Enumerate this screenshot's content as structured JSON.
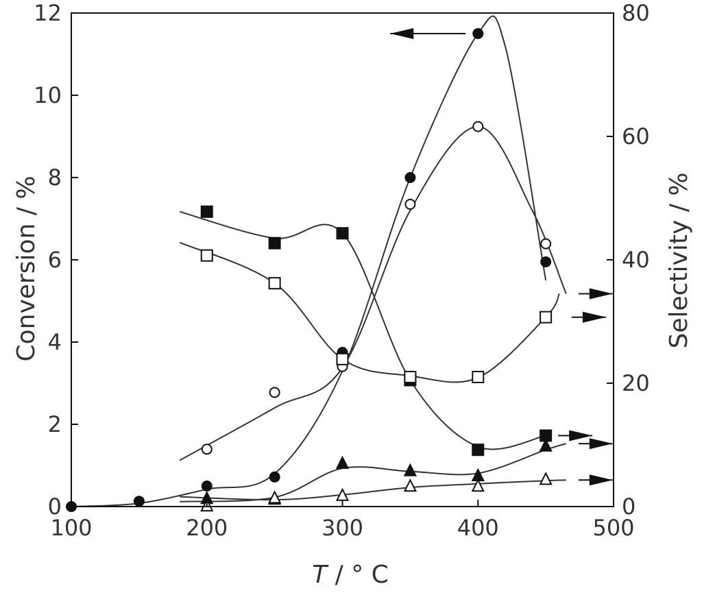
{
  "chart_data": {
    "type": "scatter",
    "xlabel": {
      "italic": "T",
      "rest": " / °  C"
    },
    "ylabel_left": "Conversion / %",
    "ylabel_right": "Selectivity / %",
    "xlim": [
      100,
      500
    ],
    "ylim_left": [
      0,
      12
    ],
    "ylim_right": [
      0,
      80
    ],
    "xticks": [
      "100",
      "200",
      "300",
      "400",
      "500"
    ],
    "yticks_left": [
      "0",
      "2",
      "4",
      "6",
      "8",
      "10",
      "12"
    ],
    "yticks_right": [
      "0",
      "20",
      "40",
      "60",
      "80"
    ],
    "grid": false,
    "legend": "none",
    "series": [
      {
        "marker": "filled-circle",
        "axis": "left",
        "x": [
          100,
          150,
          200,
          250,
          300,
          350,
          400,
          450
        ],
        "y": [
          0,
          0.13,
          0.5,
          0.72,
          3.75,
          8.0,
          11.5,
          5.95
        ],
        "curve": [
          [
            100,
            0
          ],
          [
            150,
            0.08
          ],
          [
            200,
            0.42
          ],
          [
            250,
            0.8
          ],
          [
            300,
            3.3
          ],
          [
            350,
            8.0
          ],
          [
            400,
            11.5
          ],
          [
            420,
            11.2
          ],
          [
            450,
            5.5
          ]
        ],
        "axis_arrow": "left"
      },
      {
        "marker": "open-circle",
        "axis": "right",
        "x": [
          200,
          250,
          300,
          350,
          400,
          450
        ],
        "y": [
          9.3,
          18.5,
          22.7,
          49,
          61.6,
          42.6
        ],
        "curve": [
          [
            180,
            7.5
          ],
          [
            250,
            16
          ],
          [
            300,
            22.5
          ],
          [
            350,
            48
          ],
          [
            400,
            61.6
          ],
          [
            440,
            48
          ],
          [
            465,
            34.5
          ]
        ],
        "axis_arrow": "right"
      },
      {
        "marker": "filled-square",
        "axis": "right",
        "x": [
          200,
          250,
          300,
          350,
          400,
          450
        ],
        "y": [
          47.8,
          42.7,
          44.3,
          20.5,
          9.2,
          11.5
        ],
        "curve": [
          [
            180,
            47.8
          ],
          [
            250,
            43.5
          ],
          [
            300,
            44.3
          ],
          [
            350,
            20.5
          ],
          [
            400,
            9.7
          ],
          [
            450,
            11.5
          ]
        ],
        "axis_arrow": "right"
      },
      {
        "marker": "open-square",
        "axis": "right",
        "x": [
          200,
          250,
          300,
          350,
          400,
          450
        ],
        "y": [
          40.7,
          36.2,
          23.9,
          21,
          21,
          30.7
        ],
        "curve": [
          [
            180,
            42.8
          ],
          [
            250,
            36.2
          ],
          [
            300,
            23.9
          ],
          [
            350,
            21.2
          ],
          [
            400,
            20.9
          ],
          [
            450,
            30.7
          ],
          [
            460,
            34.5
          ]
        ],
        "axis_arrow": "right"
      },
      {
        "marker": "filled-triangle",
        "axis": "right",
        "x": [
          200,
          250,
          300,
          350,
          400,
          450
        ],
        "y": [
          1.3,
          1.2,
          7.0,
          5.8,
          5.0,
          9.8
        ],
        "curve": [
          [
            180,
            0.8
          ],
          [
            250,
            1.5
          ],
          [
            300,
            6.2
          ],
          [
            350,
            5.7
          ],
          [
            400,
            5.4
          ],
          [
            450,
            9.2
          ],
          [
            465,
            10.2
          ]
        ],
        "axis_arrow": "right"
      },
      {
        "marker": "open-triangle",
        "axis": "right",
        "x": [
          200,
          250,
          300,
          350,
          400,
          450
        ],
        "y": [
          0.1,
          1.4,
          1.8,
          3.3,
          3.3,
          4.4
        ],
        "curve": [
          [
            180,
            1.6
          ],
          [
            250,
            1.1
          ],
          [
            300,
            1.9
          ],
          [
            350,
            3.1
          ],
          [
            400,
            3.7
          ],
          [
            450,
            4.2
          ],
          [
            465,
            4.3
          ]
        ],
        "axis_arrow": "right"
      }
    ]
  }
}
